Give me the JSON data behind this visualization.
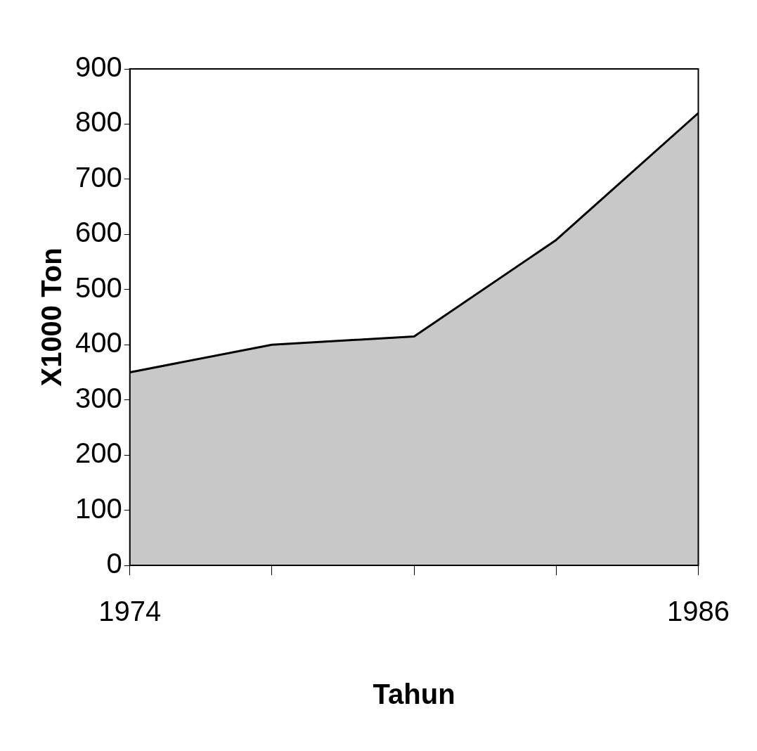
{
  "chart_data": {
    "type": "area",
    "xlabel": "Tahun",
    "ylabel": "X1000 Ton",
    "x": [
      1974,
      1977,
      1980,
      1983,
      1986
    ],
    "series": [
      {
        "color": "#c8c8c8",
        "values": [
          350,
          400,
          415,
          590,
          820
        ]
      }
    ],
    "xlim": [
      1974,
      1986
    ],
    "xticks": [
      1974,
      {
        "value": 1977,
        "label": null
      },
      {
        "value": 1980,
        "label": null
      },
      {
        "value": 1983,
        "label": null
      },
      1986
    ],
    "ylim": [
      0,
      900
    ],
    "yticks": [
      0,
      100,
      200,
      300,
      400,
      500,
      600,
      700,
      800,
      900
    ],
    "grid": false,
    "legend": false
  }
}
